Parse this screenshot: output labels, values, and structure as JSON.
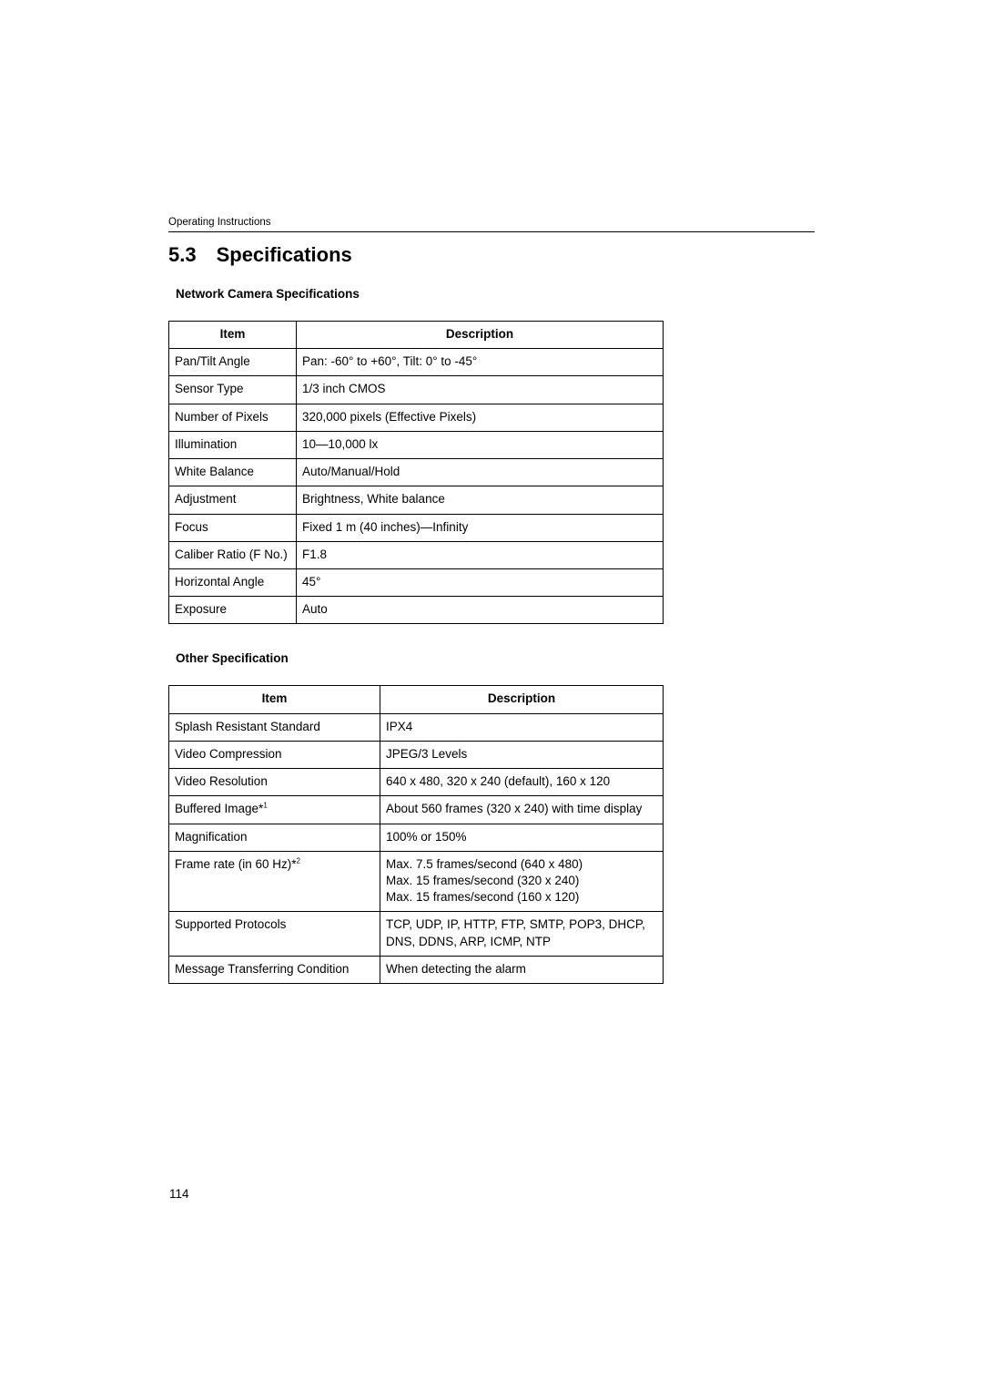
{
  "header": "Operating Instructions",
  "sectionTitle": "5.3 Specifications",
  "sub1": "Network Camera Specifications",
  "table1": {
    "headers": [
      "Item",
      "Description"
    ],
    "rows": [
      [
        "Pan/Tilt Angle",
        "Pan: -60° to +60°, Tilt: 0° to -45°"
      ],
      [
        "Sensor Type",
        "1/3 inch CMOS"
      ],
      [
        "Number of Pixels",
        "320,000 pixels (Effective Pixels)"
      ],
      [
        "Illumination",
        "10—10,000 lx"
      ],
      [
        "White Balance",
        "Auto/Manual/Hold"
      ],
      [
        "Adjustment",
        "Brightness, White balance"
      ],
      [
        "Focus",
        "Fixed 1 m (40 inches)—Infinity"
      ],
      [
        "Caliber Ratio (F No.)",
        "F1.8"
      ],
      [
        "Horizontal Angle",
        "45°"
      ],
      [
        "Exposure",
        "Auto"
      ]
    ]
  },
  "sub2": "Other Specification",
  "table2": {
    "headers": [
      "Item",
      "Description"
    ],
    "rows": [
      {
        "item": "Splash Resistant Standard",
        "desc": "IPX4"
      },
      {
        "item": "Video Compression",
        "desc": "JPEG/3 Levels"
      },
      {
        "item": "Video Resolution",
        "desc": "640 x 480, 320 x 240 (default), 160 x 120"
      },
      {
        "item": "Buffered Image*",
        "sup": "1",
        "desc": "About 560 frames (320 x 240) with time display"
      },
      {
        "item": "Magnification",
        "desc": "100% or 150%"
      },
      {
        "item": "Frame rate (in 60 Hz)*",
        "sup": "2",
        "lines": [
          "Max. 7.5 frames/second (640 x 480)",
          "Max. 15 frames/second (320 x 240)",
          "Max. 15 frames/second (160 x 120)"
        ]
      },
      {
        "item": "Supported Protocols",
        "lines": [
          "TCP, UDP, IP, HTTP, FTP, SMTP, POP3, DHCP,",
          "DNS, DDNS, ARP, ICMP, NTP"
        ]
      },
      {
        "item": "Message Transferring Condition",
        "desc": "When detecting the alarm"
      }
    ]
  },
  "pageNumber": "114"
}
